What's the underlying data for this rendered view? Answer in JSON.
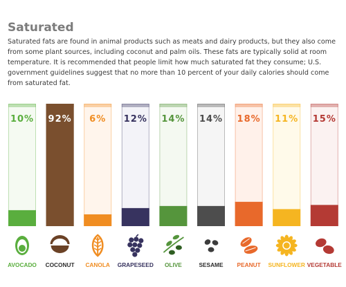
{
  "header": {
    "title": "Saturated",
    "description": "Saturated fats are found in animal products such as meats and dairy products, but they also come from some plant sources, including coconut and palm oils. These fats are typically solid at room temperature. It is recommended that people limit how much saturated fat they consume; U.S. government guidelines suggest that no more than 10 percent of your daily calories should come from saturated fat."
  },
  "chart_data": {
    "type": "bar",
    "categories": [
      "AVOCADO",
      "COCONUT",
      "CANOLA",
      "GRAPESEED",
      "OLIVE",
      "SESAME",
      "PEANUT",
      "SUNFLOWER",
      "VEGETABLE"
    ],
    "values": [
      10,
      92,
      6,
      12,
      14,
      14,
      18,
      11,
      15
    ],
    "value_labels": [
      "10%",
      "92%",
      "6%",
      "12%",
      "14%",
      "14%",
      "18%",
      "11%",
      "15%"
    ],
    "ylim": [
      0,
      100
    ],
    "colors": [
      "#5aae3e",
      "#7a4f2e",
      "#f08d22",
      "#37335f",
      "#55953c",
      "#4d4d4d",
      "#e8692b",
      "#f5b521",
      "#b43a34"
    ],
    "light_colors": [
      "#f5faf2",
      "#7a4f2e",
      "#fff5ec",
      "#f3f3f8",
      "#f4f9f1",
      "#f5f5f5",
      "#fff1ea",
      "#fffaea",
      "#fbf2f1"
    ],
    "label_colors": [
      "#5aae3e",
      "#2c2c2c",
      "#f08d22",
      "#37335f",
      "#55953c",
      "#2c2c2c",
      "#e8692b",
      "#f5b521",
      "#b43a34"
    ],
    "icons": [
      "avocado-icon",
      "coconut-icon",
      "canola-icon",
      "grapeseed-icon",
      "olive-icon",
      "sesame-icon",
      "peanut-icon",
      "sunflower-icon",
      "vegetable-icon"
    ]
  }
}
